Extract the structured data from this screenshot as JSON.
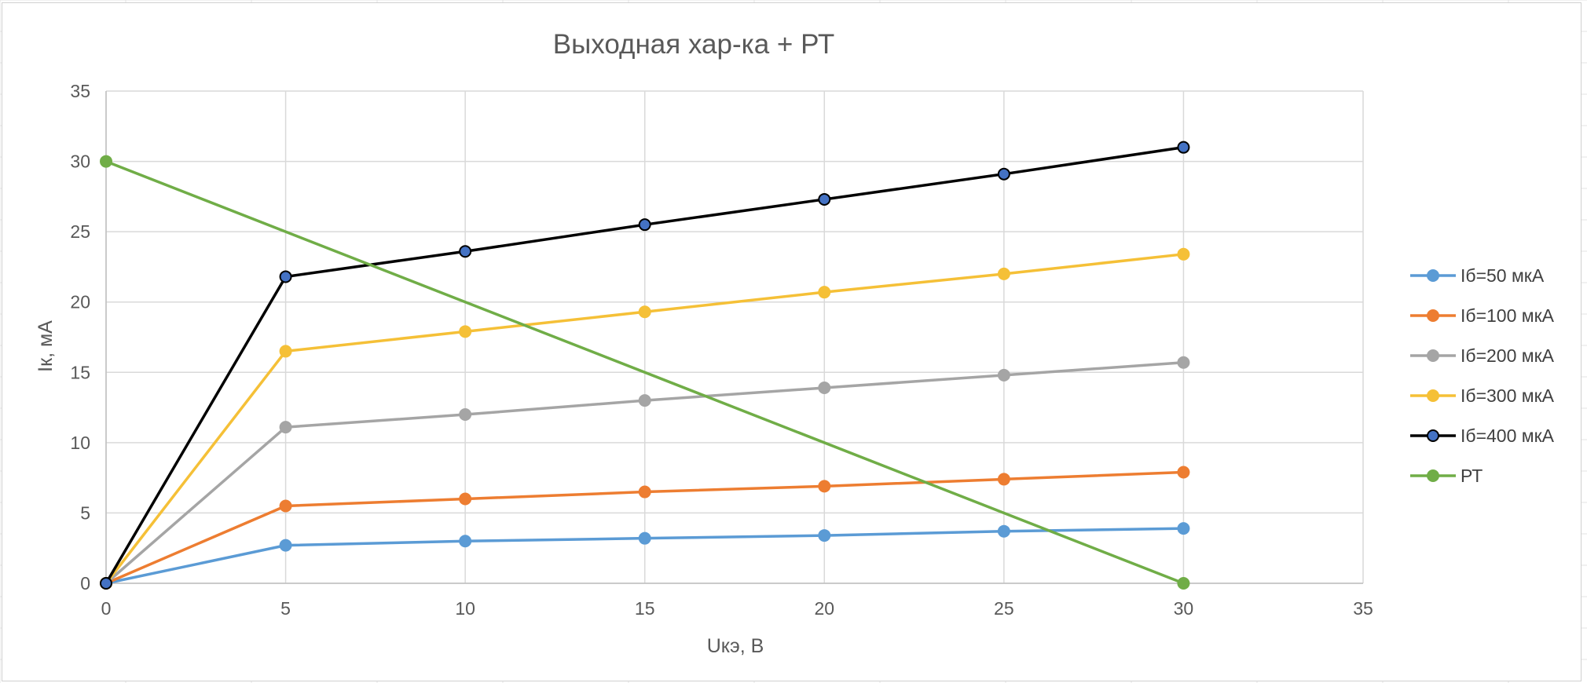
{
  "chart_data": {
    "type": "scatter",
    "title": "Выходная хар-ка + РТ",
    "xlabel": "Uкэ, В",
    "ylabel": "Iк, мА",
    "xlim": [
      0,
      35
    ],
    "ylim": [
      0,
      35
    ],
    "x_ticks": [
      0,
      5,
      10,
      15,
      20,
      25,
      30,
      35
    ],
    "y_ticks": [
      0,
      5,
      10,
      15,
      20,
      25,
      30,
      35
    ],
    "grid": true,
    "legend_position": "right",
    "series": [
      {
        "name": "Iб=50 мкА",
        "color": "#5b9bd5",
        "marker_fill": "#5b9bd5",
        "marker_edge": "#5b9bd5",
        "x": [
          0,
          5,
          10,
          15,
          20,
          25,
          30
        ],
        "y": [
          0,
          2.7,
          3.0,
          3.2,
          3.4,
          3.7,
          3.9
        ]
      },
      {
        "name": "Iб=100 мкА",
        "color": "#ed7d31",
        "marker_fill": "#ed7d31",
        "marker_edge": "#ed7d31",
        "x": [
          0,
          5,
          10,
          15,
          20,
          25,
          30
        ],
        "y": [
          0,
          5.5,
          6.0,
          6.5,
          6.9,
          7.4,
          7.9
        ]
      },
      {
        "name": "Iб=200 мкА",
        "color": "#a5a5a5",
        "marker_fill": "#a5a5a5",
        "marker_edge": "#a5a5a5",
        "x": [
          0,
          5,
          10,
          15,
          20,
          25,
          30
        ],
        "y": [
          0,
          11.1,
          12.0,
          13.0,
          13.9,
          14.8,
          15.7
        ]
      },
      {
        "name": "Iб=300 мкА",
        "color": "#f5c037",
        "marker_fill": "#f5c037",
        "marker_edge": "#f5c037",
        "x": [
          0,
          5,
          10,
          15,
          20,
          25,
          30
        ],
        "y": [
          0,
          16.5,
          17.9,
          19.3,
          20.7,
          22.0,
          23.4
        ]
      },
      {
        "name": "Iб=400 мкА",
        "color": "#000000",
        "marker_fill": "#4472c4",
        "marker_edge": "#000000",
        "x": [
          0,
          5,
          10,
          15,
          20,
          25,
          30
        ],
        "y": [
          0,
          21.8,
          23.6,
          25.5,
          27.3,
          29.1,
          31.0
        ]
      },
      {
        "name": "РТ",
        "color": "#70ad47",
        "marker_fill": "#70ad47",
        "marker_edge": "#70ad47",
        "x": [
          0,
          30
        ],
        "y": [
          30,
          0
        ]
      }
    ]
  }
}
